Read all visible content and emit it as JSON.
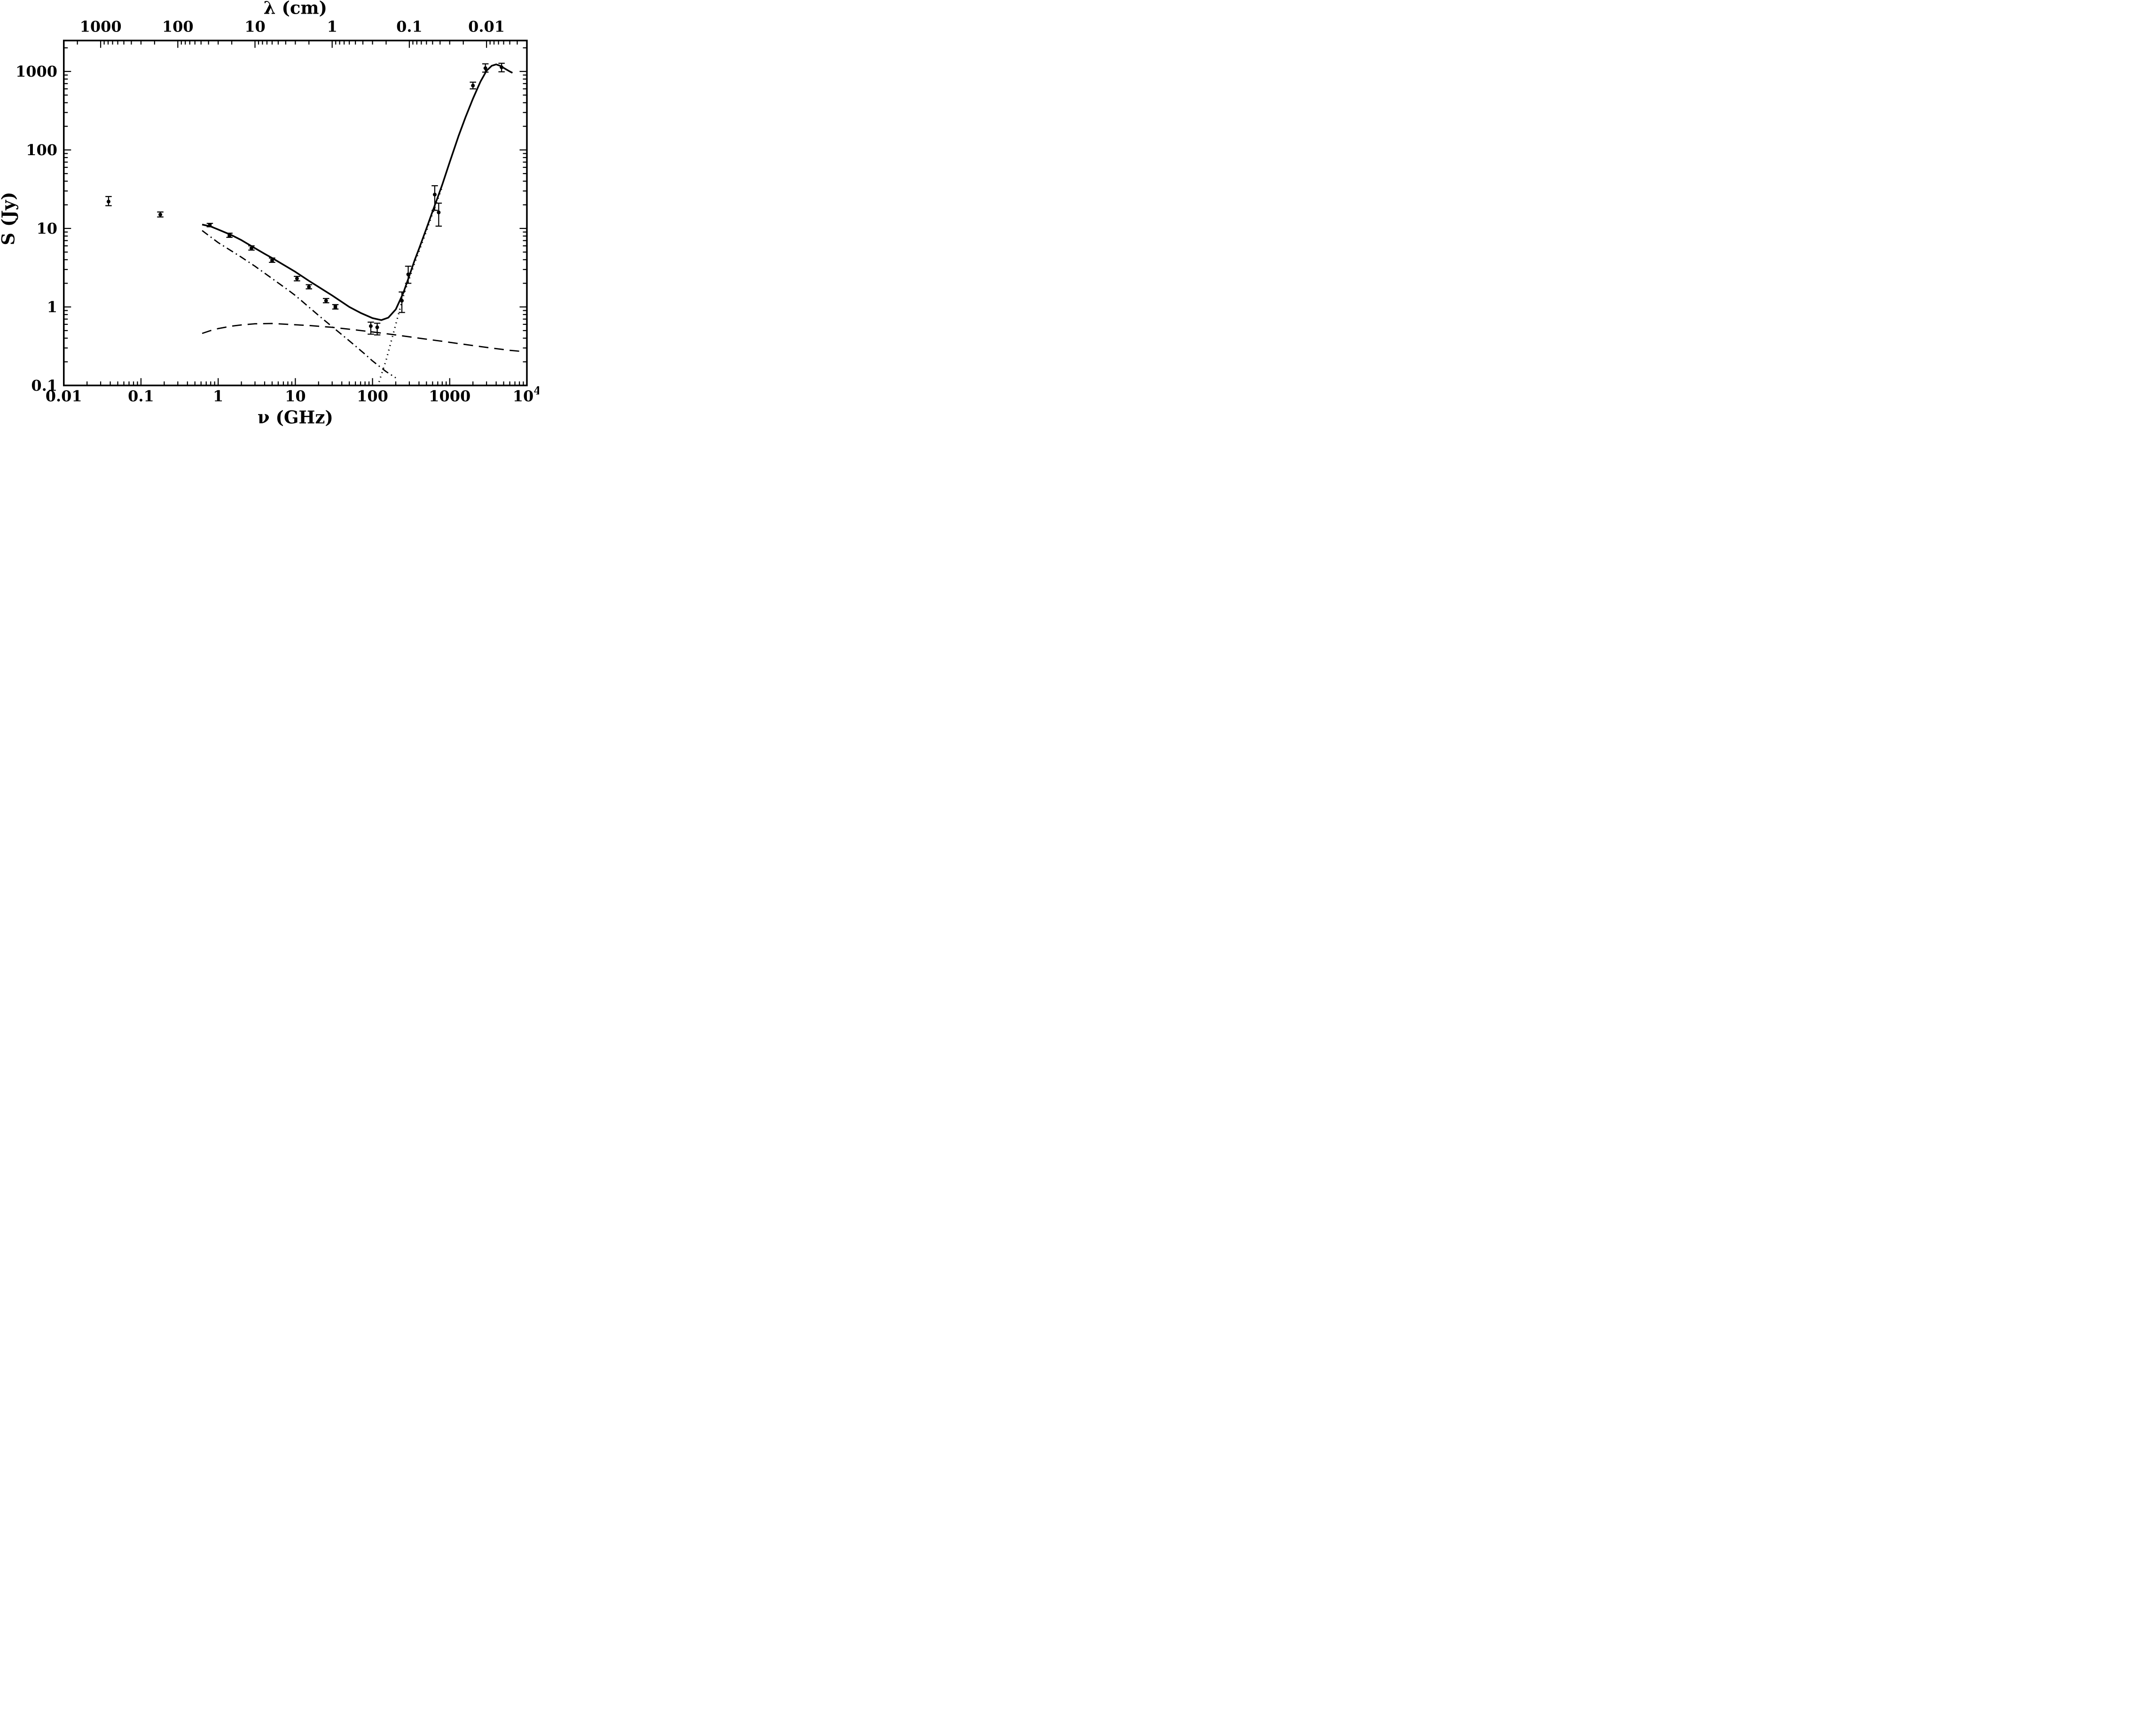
{
  "figure": {
    "background_color": "#ffffff",
    "ink_color": "#000000",
    "description": "Log-log radio to far-infrared spectrum: flux density versus frequency with fitted emission components"
  },
  "chart_data": {
    "type": "scatter",
    "title": "",
    "xlabel": "ν (GHz)",
    "top_xlabel": "λ (cm)",
    "ylabel": "S (Jy)",
    "x_axis": {
      "scale": "log",
      "min": 0.01,
      "max": 10000,
      "major_ticks": [
        0.01,
        0.1,
        1,
        10,
        100,
        1000,
        10000
      ],
      "tick_labels": [
        "0.01",
        "0.1",
        "1",
        "10",
        "100",
        "1000",
        "10^4"
      ]
    },
    "top_axis": {
      "scale": "log",
      "relation": "lambda_cm = 30 / nu_GHz",
      "major_ticks_lambda": [
        1000,
        100,
        10,
        1,
        0.1,
        0.01
      ],
      "tick_labels": [
        "1000",
        "100",
        "10",
        "1",
        "0.1",
        "0.01"
      ]
    },
    "y_axis": {
      "scale": "log",
      "min": 0.1,
      "max": 2480,
      "major_ticks": [
        0.1,
        1,
        10,
        100,
        1000
      ],
      "tick_labels": [
        "0.1",
        "1",
        "10",
        "100",
        "1000"
      ]
    },
    "grid": false,
    "legend": null,
    "points": [
      {
        "nu_ghz": 0.038,
        "s_jy": 22,
        "s_lo": 19.5,
        "s_hi": 25.5,
        "marker": "circle"
      },
      {
        "nu_ghz": 0.178,
        "s_jy": 15,
        "s_lo": 14.0,
        "s_hi": 16.2,
        "marker": "circle"
      },
      {
        "nu_ghz": 0.78,
        "s_jy": 11,
        "s_lo": 10.5,
        "s_hi": 11.6,
        "marker": "square"
      },
      {
        "nu_ghz": 1.4,
        "s_jy": 8.2,
        "s_lo": 7.7,
        "s_hi": 8.7,
        "marker": "square"
      },
      {
        "nu_ghz": 2.7,
        "s_jy": 5.6,
        "s_lo": 5.3,
        "s_hi": 6.0,
        "marker": "circle"
      },
      {
        "nu_ghz": 5.0,
        "s_jy": 3.9,
        "s_lo": 3.7,
        "s_hi": 4.2,
        "marker": "square"
      },
      {
        "nu_ghz": 10.5,
        "s_jy": 2.3,
        "s_lo": 2.15,
        "s_hi": 2.45,
        "marker": "circle"
      },
      {
        "nu_ghz": 15,
        "s_jy": 1.8,
        "s_lo": 1.7,
        "s_hi": 1.92,
        "marker": "circle"
      },
      {
        "nu_ghz": 25,
        "s_jy": 1.2,
        "s_lo": 1.13,
        "s_hi": 1.28,
        "marker": "circle"
      },
      {
        "nu_ghz": 33,
        "s_jy": 1.0,
        "s_lo": 0.94,
        "s_hi": 1.07,
        "marker": "square"
      },
      {
        "nu_ghz": 95,
        "s_jy": 0.57,
        "s_lo": 0.45,
        "s_hi": 0.64,
        "marker": "circle"
      },
      {
        "nu_ghz": 115,
        "s_jy": 0.55,
        "s_lo": 0.44,
        "s_hi": 0.62,
        "marker": "circle"
      },
      {
        "nu_ghz": 240,
        "s_jy": 1.2,
        "s_lo": 0.85,
        "s_hi": 1.55,
        "marker": "circle"
      },
      {
        "nu_ghz": 290,
        "s_jy": 2.6,
        "s_lo": 2.0,
        "s_hi": 3.3,
        "marker": "circle"
      },
      {
        "nu_ghz": 640,
        "s_jy": 27,
        "s_lo": 17,
        "s_hi": 35,
        "marker": "circle"
      },
      {
        "nu_ghz": 720,
        "s_jy": 16,
        "s_lo": 10.7,
        "s_hi": 21,
        "marker": "circle"
      },
      {
        "nu_ghz": 2000,
        "s_jy": 660,
        "s_lo": 600,
        "s_hi": 730,
        "marker": "circle"
      },
      {
        "nu_ghz": 2900,
        "s_jy": 1100,
        "s_lo": 980,
        "s_hi": 1250,
        "marker": "circle"
      },
      {
        "nu_ghz": 4700,
        "s_jy": 1130,
        "s_lo": 990,
        "s_hi": 1270,
        "marker": "circle"
      }
    ],
    "curves": {
      "total": {
        "name": "total-fit",
        "style": "solid",
        "points": [
          [
            0.62,
            11.2
          ],
          [
            0.8,
            10.6
          ],
          [
            1.0,
            9.7
          ],
          [
            1.5,
            8.2
          ],
          [
            2,
            7.1
          ],
          [
            3,
            5.6
          ],
          [
            4,
            4.75
          ],
          [
            5,
            4.2
          ],
          [
            7,
            3.45
          ],
          [
            10,
            2.8
          ],
          [
            15,
            2.15
          ],
          [
            20,
            1.8
          ],
          [
            30,
            1.4
          ],
          [
            50,
            1.0
          ],
          [
            70,
            0.84
          ],
          [
            100,
            0.72
          ],
          [
            130,
            0.68
          ],
          [
            160,
            0.73
          ],
          [
            200,
            0.93
          ],
          [
            250,
            1.5
          ],
          [
            300,
            2.5
          ],
          [
            350,
            3.9
          ],
          [
            400,
            5.5
          ],
          [
            500,
            10
          ],
          [
            600,
            16.5
          ],
          [
            700,
            25
          ],
          [
            800,
            36
          ],
          [
            1000,
            70
          ],
          [
            1300,
            150
          ],
          [
            1600,
            260
          ],
          [
            2000,
            450
          ],
          [
            2500,
            740
          ],
          [
            3000,
            1020
          ],
          [
            3500,
            1180
          ],
          [
            4000,
            1230
          ],
          [
            4500,
            1180
          ],
          [
            5000,
            1110
          ],
          [
            5500,
            1050
          ],
          [
            6000,
            1000
          ],
          [
            6500,
            960
          ]
        ]
      },
      "synchrotron": {
        "name": "synchrotron-component",
        "style": "dash-dot",
        "points": [
          [
            0.62,
            9.4
          ],
          [
            1,
            6.6
          ],
          [
            2,
            4.3
          ],
          [
            3,
            3.3
          ],
          [
            5,
            2.3
          ],
          [
            8,
            1.65
          ],
          [
            10,
            1.4
          ],
          [
            20,
            0.78
          ],
          [
            30,
            0.56
          ],
          [
            50,
            0.37
          ],
          [
            80,
            0.25
          ],
          [
            100,
            0.205
          ],
          [
            150,
            0.15
          ],
          [
            200,
            0.125
          ]
        ]
      },
      "free_free": {
        "name": "free-free-component",
        "style": "dashed",
        "points": [
          [
            0.62,
            0.46
          ],
          [
            0.8,
            0.5
          ],
          [
            1,
            0.53
          ],
          [
            1.5,
            0.57
          ],
          [
            2,
            0.59
          ],
          [
            3,
            0.61
          ],
          [
            5,
            0.615
          ],
          [
            8,
            0.6
          ],
          [
            15,
            0.58
          ],
          [
            30,
            0.55
          ],
          [
            60,
            0.51
          ],
          [
            100,
            0.48
          ],
          [
            200,
            0.44
          ],
          [
            400,
            0.4
          ],
          [
            800,
            0.365
          ],
          [
            1500,
            0.335
          ],
          [
            3000,
            0.305
          ],
          [
            6000,
            0.28
          ],
          [
            9000,
            0.27
          ]
        ]
      },
      "dust": {
        "name": "dust-component",
        "style": "dotted",
        "points": [
          [
            112,
            0.085
          ],
          [
            128,
            0.13
          ],
          [
            150,
            0.21
          ],
          [
            185,
            0.45
          ],
          [
            220,
            0.85
          ],
          [
            260,
            1.55
          ],
          [
            300,
            2.3
          ],
          [
            350,
            3.6
          ],
          [
            400,
            5.1
          ],
          [
            500,
            9.3
          ],
          [
            600,
            15.5
          ],
          [
            700,
            23.5
          ],
          [
            800,
            34
          ]
        ]
      }
    }
  }
}
